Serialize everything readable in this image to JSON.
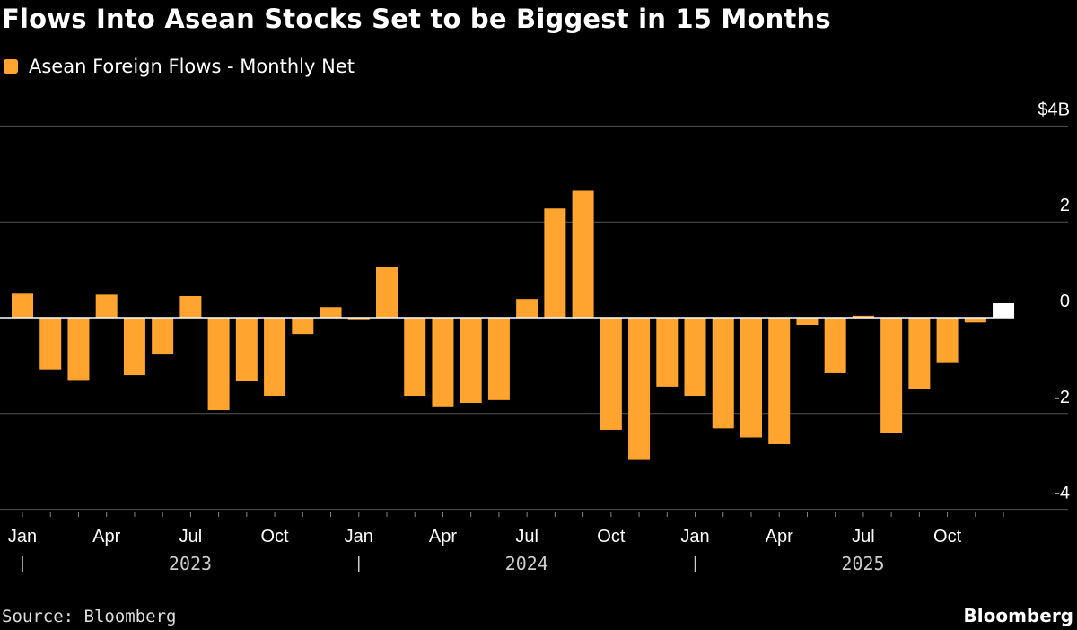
{
  "chart_data": {
    "type": "bar",
    "title": "Flows Into Asean Stocks Set to be Biggest in 15 Months",
    "legend": [
      "Asean Foreign Flows - Monthly Net"
    ],
    "legend_position": "top-left",
    "ylabel": "",
    "xlabel": "",
    "ylim": [
      -4,
      4
    ],
    "y_ticks": [
      "$4B",
      "2",
      "0",
      "-2",
      "-4"
    ],
    "y_tick_values": [
      4,
      2,
      0,
      -2,
      -4
    ],
    "grid": true,
    "x_tick_labels": [
      "Jan",
      "Apr",
      "Jul",
      "Oct",
      "Jan",
      "Apr",
      "Jul",
      "Oct",
      "Jan",
      "Apr",
      "Jul",
      "Oct"
    ],
    "x_tick_indices": [
      0,
      3,
      6,
      9,
      12,
      15,
      18,
      21,
      24,
      27,
      30,
      33
    ],
    "year_labels": [
      "2023",
      "2024",
      "2025"
    ],
    "categories": [
      "Jan 2023",
      "Feb 2023",
      "Mar 2023",
      "Apr 2023",
      "May 2023",
      "Jun 2023",
      "Jul 2023",
      "Aug 2023",
      "Sep 2023",
      "Oct 2023",
      "Nov 2023",
      "Dec 2023",
      "Jan 2024",
      "Feb 2024",
      "Mar 2024",
      "Apr 2024",
      "May 2024",
      "Jun 2024",
      "Jul 2024",
      "Aug 2024",
      "Sep 2024",
      "Oct 2024",
      "Nov 2024",
      "Dec 2024",
      "Jan 2025",
      "Feb 2025",
      "Mar 2025",
      "Apr 2025",
      "May 2025",
      "Jun 2025",
      "Jul 2025",
      "Aug 2025",
      "Sep 2025",
      "Oct 2025",
      "Nov 2025",
      "Dec 2025"
    ],
    "values": [
      0.5,
      -1.08,
      -1.3,
      0.48,
      -1.2,
      -0.77,
      0.45,
      -1.93,
      -1.33,
      -1.63,
      -0.34,
      0.22,
      -0.05,
      1.05,
      -1.63,
      -1.85,
      -1.78,
      -1.72,
      0.39,
      2.28,
      2.65,
      -2.34,
      -2.97,
      -1.44,
      -1.63,
      -2.31,
      -2.5,
      -2.64,
      -0.15,
      -1.16,
      0.04,
      -2.41,
      -1.48,
      -0.93,
      -0.1,
      0.3
    ],
    "highlight_index": 35,
    "colors": {
      "bar": "#ffa42e",
      "highlight": "#ffffff",
      "grid": "#555555",
      "zero": "#ffffff"
    }
  },
  "footer": {
    "source": "Source: Bloomberg",
    "brand": "Bloomberg"
  }
}
